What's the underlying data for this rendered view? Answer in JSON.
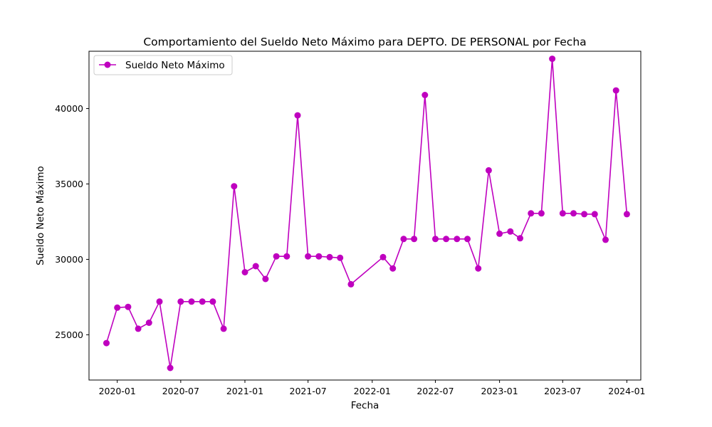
{
  "chart_data": {
    "type": "line",
    "title": "Comportamiento del Sueldo Neto Máximo para DEPTO. DE PERSONAL por Fecha",
    "xlabel": "Fecha",
    "ylabel": "Sueldo Neto Máximo",
    "legend_position": "upper-left",
    "grid": false,
    "color": "#bf00bf",
    "ylim": [
      22000,
      43800
    ],
    "xlim": [
      "2019-10-12",
      "2024-02-10"
    ],
    "x_ticks": [
      "2020-01",
      "2020-07",
      "2021-01",
      "2021-07",
      "2022-01",
      "2022-07",
      "2023-01",
      "2023-07",
      "2024-01"
    ],
    "y_ticks": [
      25000,
      30000,
      35000,
      40000
    ],
    "series": [
      {
        "name": "Sueldo Neto Máximo",
        "x": [
          "2019-12-01",
          "2020-01-01",
          "2020-02-01",
          "2020-03-01",
          "2020-04-01",
          "2020-05-01",
          "2020-06-01",
          "2020-07-01",
          "2020-08-01",
          "2020-09-01",
          "2020-10-01",
          "2020-11-01",
          "2020-12-01",
          "2021-01-01",
          "2021-02-01",
          "2021-03-01",
          "2021-04-01",
          "2021-05-01",
          "2021-06-01",
          "2021-07-01",
          "2021-08-01",
          "2021-09-01",
          "2021-10-01",
          "2021-11-01",
          "2022-02-01",
          "2022-03-01",
          "2022-04-01",
          "2022-05-01",
          "2022-06-01",
          "2022-07-01",
          "2022-08-01",
          "2022-09-01",
          "2022-10-01",
          "2022-11-01",
          "2022-12-01",
          "2023-01-01",
          "2023-02-01",
          "2023-03-01",
          "2023-04-01",
          "2023-05-01",
          "2023-06-01",
          "2023-07-01",
          "2023-08-01",
          "2023-09-01",
          "2023-10-01",
          "2023-11-01",
          "2023-12-01",
          "2024-01-01"
        ],
        "y": [
          24450,
          26800,
          26850,
          25400,
          25800,
          27200,
          22800,
          27200,
          27200,
          27200,
          27200,
          25400,
          34850,
          29150,
          29550,
          28700,
          30200,
          30200,
          39550,
          30200,
          30200,
          30150,
          30100,
          28350,
          30150,
          29400,
          31350,
          31350,
          40900,
          31350,
          31350,
          31350,
          31350,
          29400,
          35900,
          31700,
          31850,
          31400,
          33050,
          33050,
          43300,
          33050,
          33050,
          33000,
          33000,
          31300,
          41200,
          33000
        ]
      }
    ]
  }
}
